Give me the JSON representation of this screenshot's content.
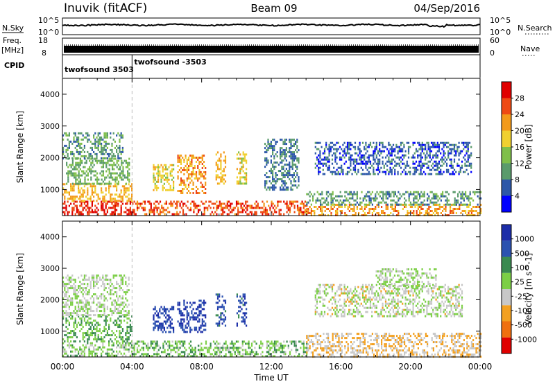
{
  "header": {
    "station": "Inuvik (fitACF)",
    "beam": "Beam 09",
    "date": "04/Sep/2016"
  },
  "top_panels": {
    "nsky_label": "N.Sky",
    "nsky_ticks": [
      "10^5",
      "10^0"
    ],
    "nsearch_label": "N.Search",
    "nsearch_ticks": [
      "10^5",
      "10^0"
    ],
    "freq_label_1": "Freq.",
    "freq_label_2": "[MHz]",
    "freq_ticks": [
      "18",
      "8"
    ],
    "nave_label": "Nave",
    "nave_ticks": [
      "60",
      "0"
    ],
    "cpid_label": "CPID",
    "cpid_events": [
      {
        "time_h": 0.0,
        "label": "twofsound 3503"
      },
      {
        "time_h": 4.0,
        "label": "twofsound -3503"
      }
    ]
  },
  "colors": {
    "power": [
      "#0000ff",
      "#2c57a8",
      "#5a9b6b",
      "#7fbf4a",
      "#f0d030",
      "#f39a1a",
      "#ee4a14",
      "#e00000"
    ],
    "velocity": [
      "#e00000",
      "#f07010",
      "#f3a020",
      "#c8c8c8",
      "#7ccf46",
      "#3a8a50",
      "#2b52b0",
      "#1c2da8"
    ]
  },
  "chart_data": [
    {
      "type": "heatmap",
      "title": "",
      "xlabel": "",
      "ylabel": "Slant Range [km]",
      "xlim": [
        0,
        24
      ],
      "ylim": [
        180,
        4500
      ],
      "x_ticks": [
        "00:00",
        "04:00",
        "08:00",
        "12:00",
        "16:00",
        "20:00",
        "00:00"
      ],
      "y_ticks": [
        "1000",
        "2000",
        "3000",
        "4000"
      ],
      "colorbar_label": "Power [dB]",
      "colorbar_ticks": [
        "4",
        "8",
        "12",
        "16",
        "20",
        "24",
        "28"
      ],
      "colorbar_range": [
        0,
        32
      ],
      "regions": [
        {
          "t0": 0.0,
          "t1": 4.0,
          "r0": 200,
          "r1": 650,
          "level": 28
        },
        {
          "t0": 0.0,
          "t1": 4.0,
          "r0": 650,
          "r1": 1200,
          "level": 20
        },
        {
          "t0": 0.2,
          "t1": 3.8,
          "r0": 1200,
          "r1": 2000,
          "level": 12
        },
        {
          "t0": 0.0,
          "t1": 3.5,
          "r0": 2000,
          "r1": 2800,
          "level": 10
        },
        {
          "t0": 5.2,
          "t1": 6.4,
          "r0": 1000,
          "r1": 1800,
          "level": 18
        },
        {
          "t0": 6.6,
          "t1": 8.2,
          "r0": 900,
          "r1": 2100,
          "level": 22
        },
        {
          "t0": 8.8,
          "t1": 9.4,
          "r0": 1200,
          "r1": 2200,
          "level": 20
        },
        {
          "t0": 10.0,
          "t1": 10.6,
          "r0": 1200,
          "r1": 2200,
          "level": 18
        },
        {
          "t0": 11.6,
          "t1": 13.6,
          "r0": 1000,
          "r1": 2600,
          "level": 8
        },
        {
          "t0": 4.0,
          "t1": 14.0,
          "r0": 200,
          "r1": 650,
          "level": 26
        },
        {
          "t0": 14.0,
          "t1": 24.0,
          "r0": 200,
          "r1": 550,
          "level": 22
        },
        {
          "t0": 14.0,
          "t1": 24.0,
          "r0": 550,
          "r1": 950,
          "level": 10
        },
        {
          "t0": 14.5,
          "t1": 23.5,
          "r0": 1500,
          "r1": 2500,
          "level": 6
        }
      ]
    },
    {
      "type": "heatmap",
      "title": "",
      "xlabel": "Time UT",
      "ylabel": "Slant Range [km]",
      "xlim": [
        0,
        24
      ],
      "ylim": [
        180,
        4500
      ],
      "x_ticks": [
        "00:00",
        "04:00",
        "08:00",
        "12:00",
        "16:00",
        "20:00",
        "00:00"
      ],
      "y_ticks": [
        "1000",
        "2000",
        "3000",
        "4000"
      ],
      "colorbar_label": "Velocity [m s^-1]",
      "colorbar_ticks": [
        "-1000",
        "-500",
        "-100",
        "-25",
        "25",
        "100",
        "500",
        "1000"
      ],
      "colorbar_range": [
        -1200,
        1200
      ],
      "regions": [
        {
          "t0": 0.0,
          "t1": 4.0,
          "r0": 200,
          "r1": 650,
          "level": 150
        },
        {
          "t0": 0.0,
          "t1": 4.0,
          "r0": 650,
          "r1": 1500,
          "level": 300
        },
        {
          "t0": 0.0,
          "t1": 3.8,
          "r0": 1500,
          "r1": 2800,
          "level": 0
        },
        {
          "t0": 5.2,
          "t1": 6.4,
          "r0": 1000,
          "r1": 1800,
          "level": 900
        },
        {
          "t0": 6.6,
          "t1": 8.2,
          "r0": 1000,
          "r1": 2000,
          "level": 900
        },
        {
          "t0": 8.8,
          "t1": 9.4,
          "r0": 1200,
          "r1": 2200,
          "level": 800
        },
        {
          "t0": 10.0,
          "t1": 10.6,
          "r0": 1200,
          "r1": 2200,
          "level": 800
        },
        {
          "t0": 4.0,
          "t1": 14.0,
          "r0": 200,
          "r1": 700,
          "level": 200
        },
        {
          "t0": 14.0,
          "t1": 24.0,
          "r0": 200,
          "r1": 950,
          "level": -300
        },
        {
          "t0": 14.5,
          "t1": 23.0,
          "r0": 1500,
          "r1": 2500,
          "level": -80
        },
        {
          "t0": 18.0,
          "t1": 21.5,
          "r0": 2400,
          "r1": 3000,
          "level": 0
        }
      ]
    }
  ]
}
